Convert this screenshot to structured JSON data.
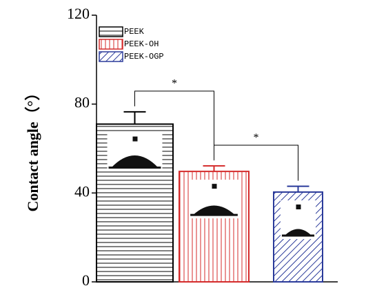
{
  "chart_data": {
    "type": "bar",
    "ylabel": "Contact angle（°）",
    "categories": [
      "PEEK",
      "PEEK-OH",
      "PEEK-OGP"
    ],
    "values": [
      71,
      49.7,
      40.4
    ],
    "errors": [
      5.5,
      2.5,
      2.6
    ],
    "colors": [
      "#000000",
      "#d42a2a",
      "#2a3a9a"
    ],
    "patterns": [
      "horizontal",
      "vertical",
      "diagonal"
    ],
    "ylim": [
      0,
      120
    ],
    "yticks": [
      0,
      40,
      80,
      120
    ],
    "annotations": [
      {
        "text": "*",
        "from": 0,
        "to": 1
      },
      {
        "text": "*",
        "from": 1,
        "to": 2
      }
    ],
    "legend": "upper left"
  }
}
